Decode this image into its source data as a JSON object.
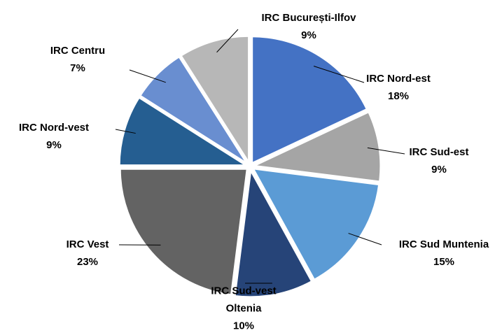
{
  "chart_data": {
    "type": "pie",
    "categories": [
      "IRC Nord-est",
      "IRC Sud-est",
      "IRC Sud Muntenia",
      "IRC Sud-vest Oltenia",
      "IRC Vest",
      "IRC Nord-vest",
      "IRC Centru",
      "IRC București-Ilfov"
    ],
    "values": [
      18,
      9,
      15,
      10,
      23,
      9,
      7,
      9
    ],
    "value_labels": [
      "18%",
      "9%",
      "15%",
      "10%",
      "23%",
      "9%",
      "7%",
      "9%"
    ],
    "colors": [
      "#4472c4",
      "#a5a5a5",
      "#5b9bd5",
      "#264478",
      "#636363",
      "#255e91",
      "#698ed0",
      "#b7b7b7"
    ]
  }
}
